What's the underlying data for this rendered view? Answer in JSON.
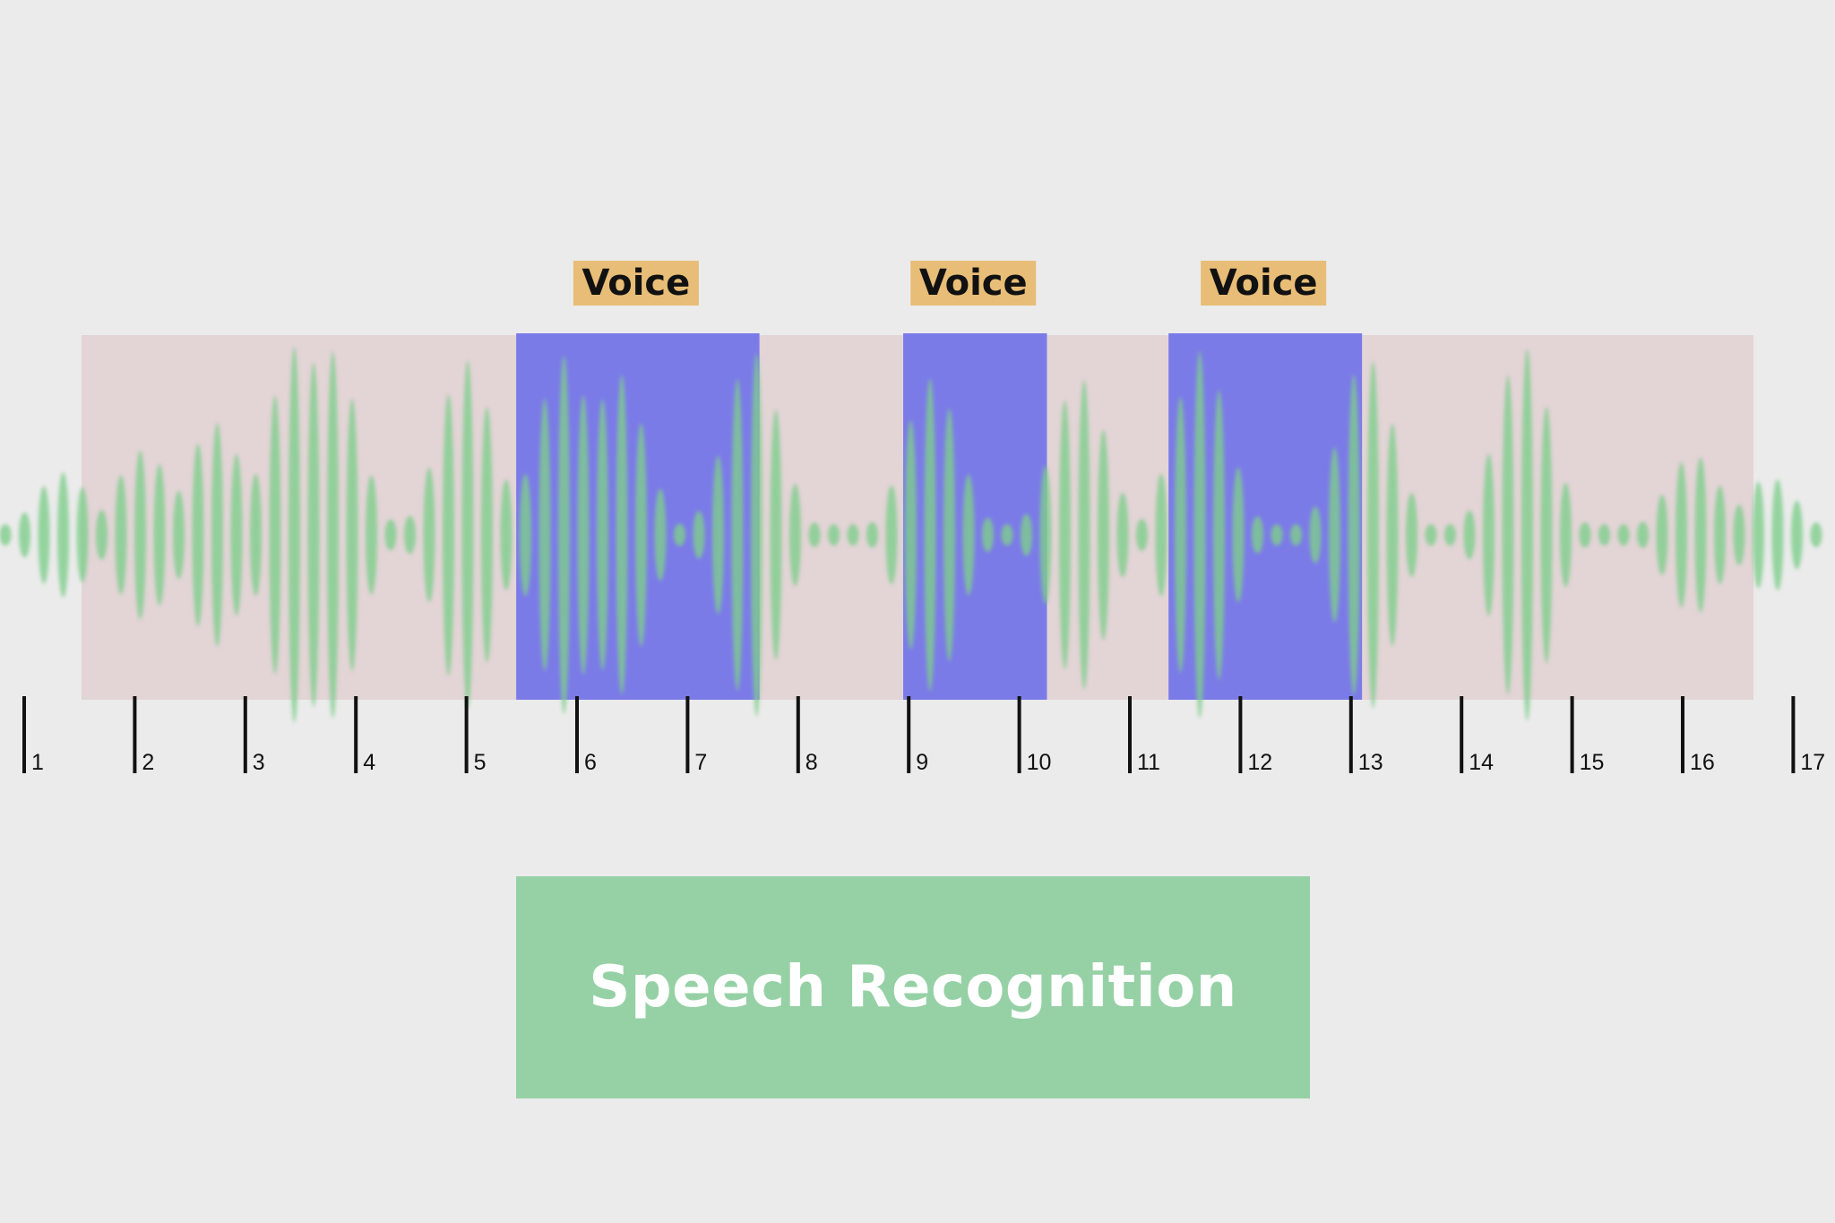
{
  "colors": {
    "background": "#ebebeb",
    "silence_band": "#e3d4d6",
    "voice_segment": "#7b7be8",
    "voice_label_bg": "#e8bd77",
    "waveform": "#7fce8c",
    "speech_box": "#96d1a6",
    "tick": "#111111"
  },
  "voice_segments": [
    {
      "label": "Voice",
      "start": 5.45,
      "end": 7.65
    },
    {
      "label": "Voice",
      "start": 8.95,
      "end": 10.25
    },
    {
      "label": "Voice",
      "start": 11.35,
      "end": 13.1
    }
  ],
  "timeline": {
    "ticks": [
      "1",
      "2",
      "3",
      "4",
      "5",
      "6",
      "7",
      "8",
      "9",
      "10",
      "11",
      "12",
      "13",
      "14",
      "15",
      "16",
      "17"
    ]
  },
  "speech_box": {
    "label": "Speech Recognition"
  }
}
